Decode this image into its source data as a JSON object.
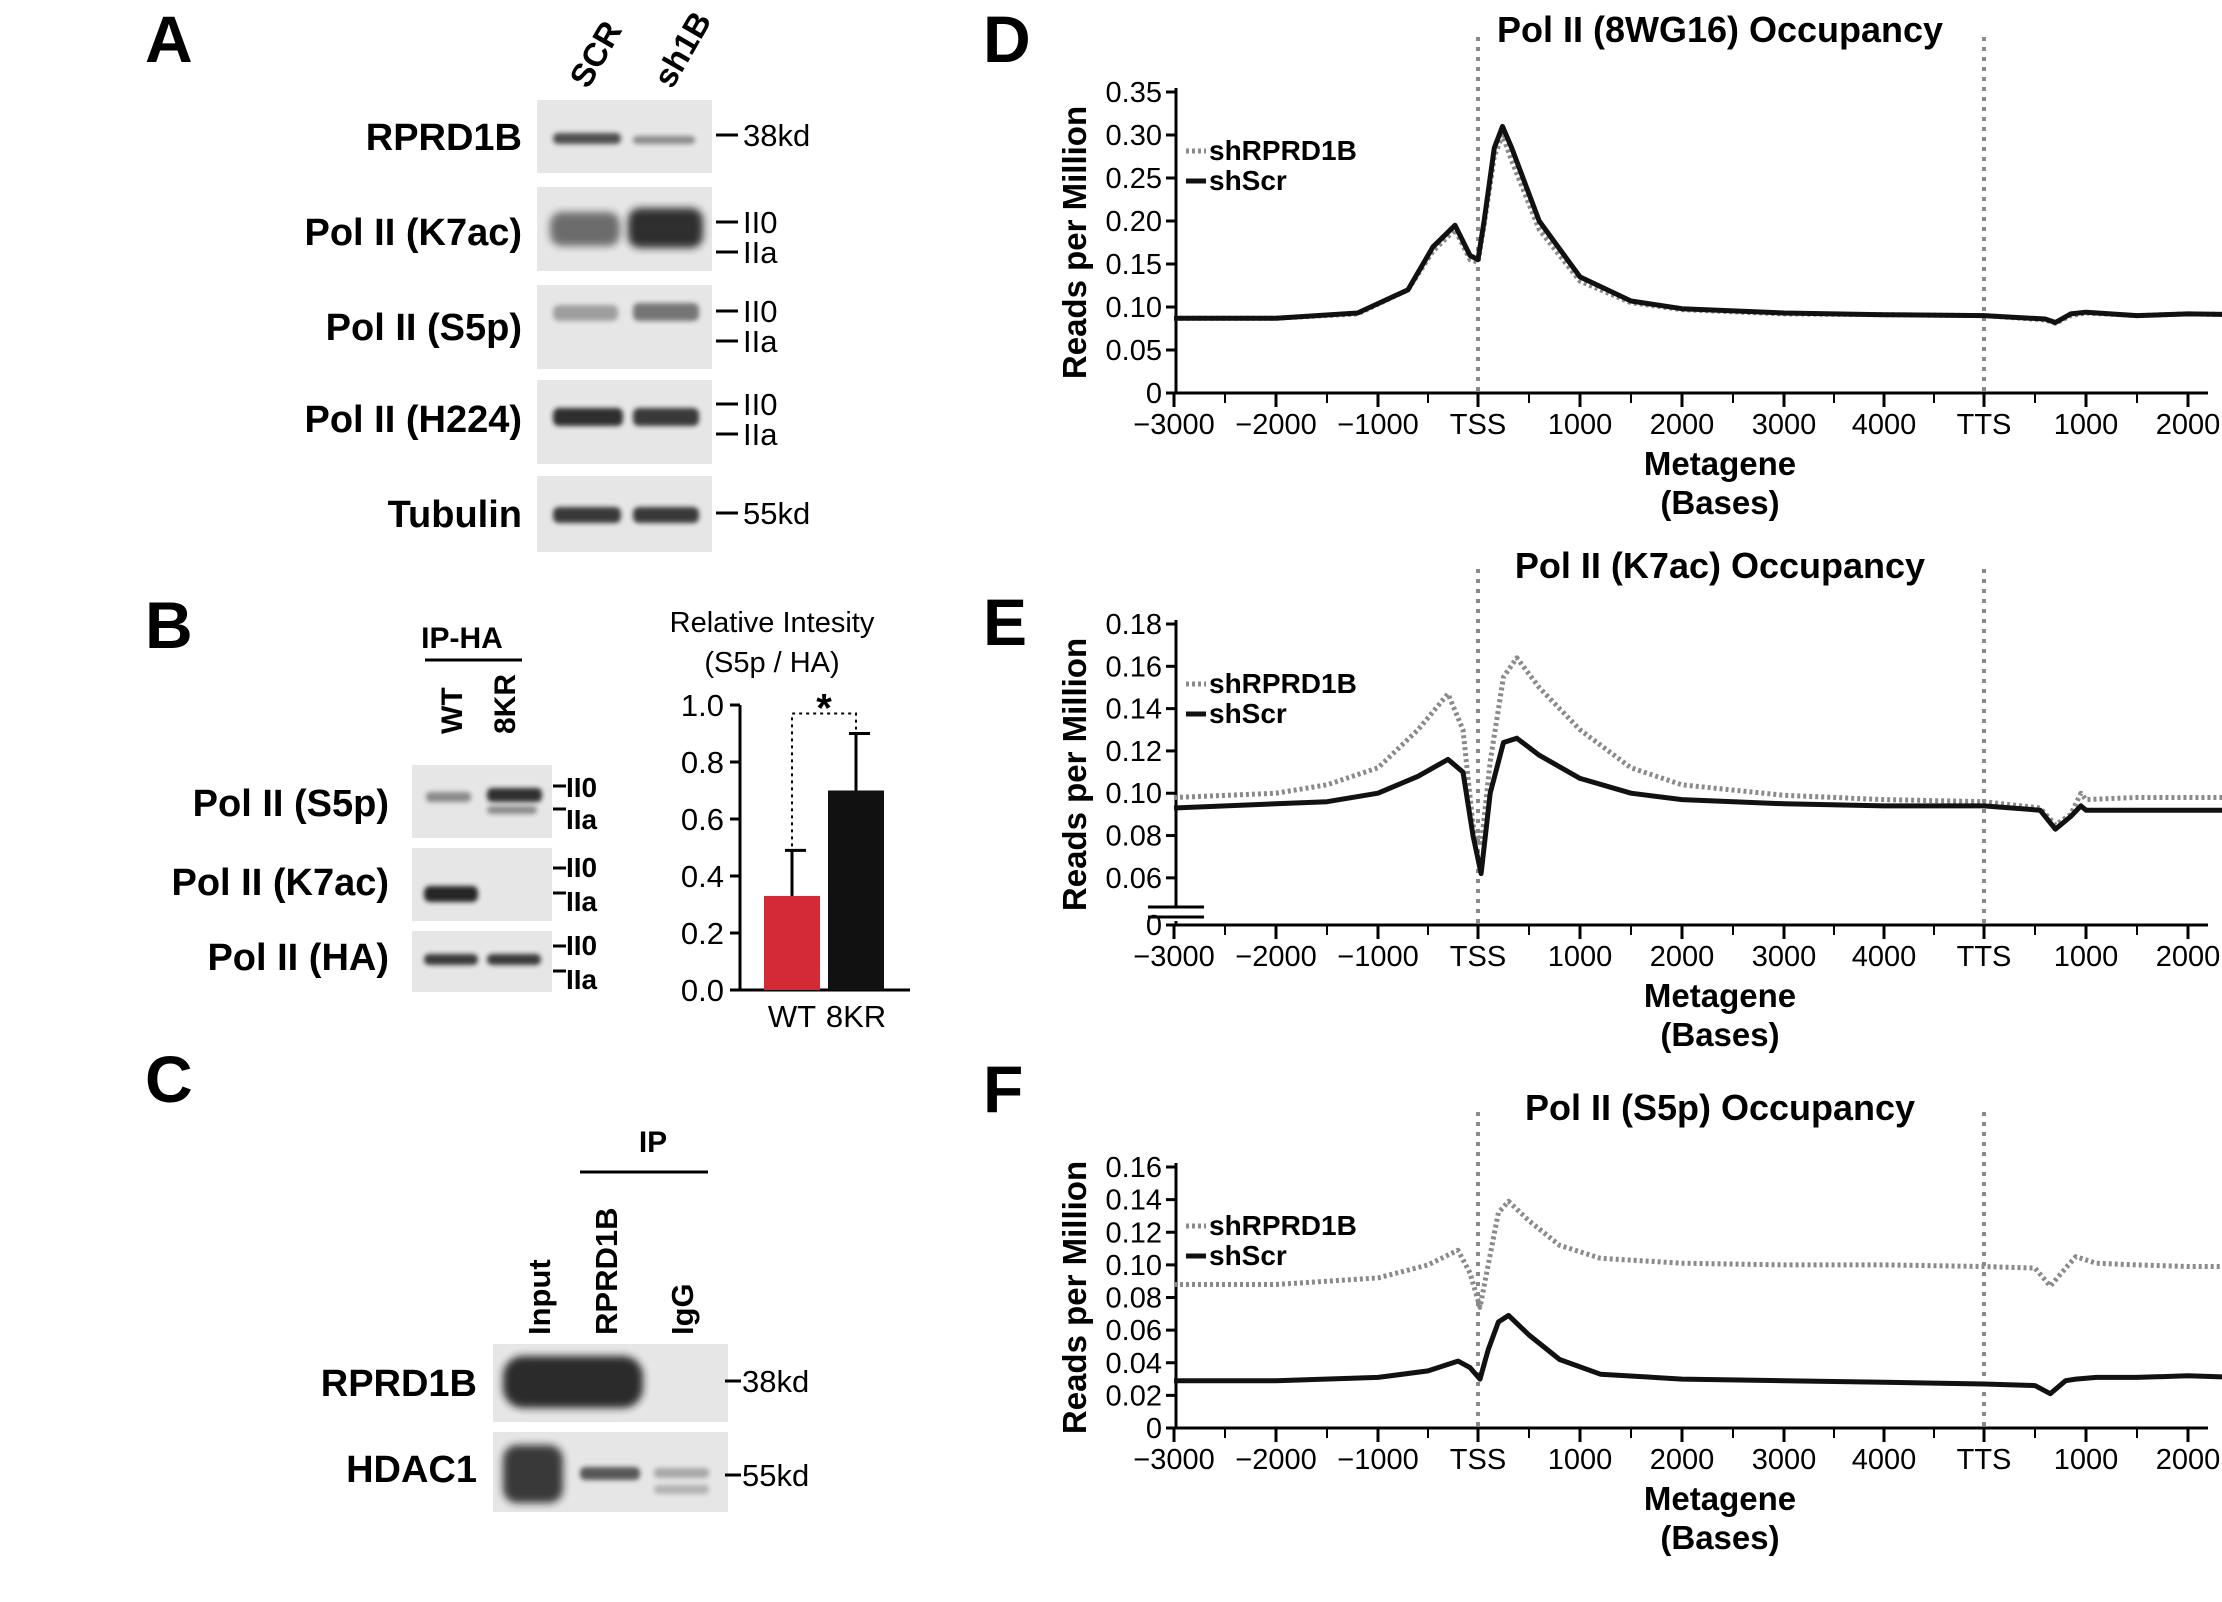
{
  "panels": {
    "A": {
      "letter": "A",
      "lanes": [
        "SCR",
        "sh1B"
      ],
      "rows": [
        {
          "label": "RPRD1B",
          "markers": [
            "38kd"
          ]
        },
        {
          "label": "Pol II (K7ac)",
          "markers": [
            "II0",
            "IIa"
          ]
        },
        {
          "label": "Pol II (S5p)",
          "markers": [
            "II0",
            "IIa"
          ]
        },
        {
          "label": "Pol II (H224)",
          "markers": [
            "II0",
            "IIa"
          ]
        },
        {
          "label": "Tubulin",
          "markers": [
            "55kd"
          ]
        }
      ]
    },
    "B": {
      "letter": "B",
      "ip_label": "IP-HA",
      "lanes": [
        "WT",
        "8KR"
      ],
      "rows": [
        {
          "label": "Pol II (S5p)",
          "markers": [
            "II0",
            "IIa"
          ]
        },
        {
          "label": "Pol II (K7ac)",
          "markers": [
            "II0",
            "IIa"
          ]
        },
        {
          "label": "Pol II (HA)",
          "markers": [
            "II0",
            "IIa"
          ]
        }
      ],
      "bar_title_line1": "Relative Intesity",
      "bar_title_line2": "(S5p / HA)",
      "significance": "*"
    },
    "C": {
      "letter": "C",
      "ip_label": "IP",
      "lanes": [
        "Input",
        "RPRD1B",
        "IgG"
      ],
      "rows": [
        {
          "label": "RPRD1B",
          "markers": [
            "38kd"
          ]
        },
        {
          "label": "HDAC1",
          "markers": [
            "55kd"
          ]
        }
      ]
    },
    "D": {
      "letter": "D"
    },
    "E": {
      "letter": "E"
    },
    "F": {
      "letter": "F"
    }
  },
  "colors": {
    "black": "#111111",
    "gray": "#8a8a8a",
    "red_bar": "#d42a36",
    "blot_background": "#e6e6e6"
  },
  "chart_data": [
    {
      "id": "B-bar",
      "type": "bar",
      "categories": [
        "WT",
        "8KR"
      ],
      "values": [
        0.33,
        0.7
      ],
      "errors": [
        0.16,
        0.2
      ],
      "bar_colors": [
        "#d42a36",
        "#111111"
      ],
      "ylim": [
        0,
        1.0
      ],
      "yticks": [
        "0.0",
        "0.2",
        "0.4",
        "0.6",
        "0.8",
        "1.0"
      ],
      "title": "Relative Intesity (S5p / HA)"
    },
    {
      "id": "D",
      "type": "line",
      "title": "Pol II (8WG16) Occupancy",
      "xlabel_line1": "Metagene",
      "xlabel_line2": "(Bases)",
      "ylabel": "Reads per Million",
      "xtick_labels": [
        "-3000",
        "-2000",
        "-1000",
        "TSS",
        "1000",
        "2000",
        "3000",
        "4000",
        "TTS",
        "1000",
        "2000"
      ],
      "ylim": [
        0,
        0.35
      ],
      "yticks": [
        "0",
        "0.05",
        "0.10",
        "0.15",
        "0.20",
        "0.25",
        "0.30",
        "0.35"
      ],
      "axis_break": false,
      "legend": [
        "shRPRD1B",
        "shScr"
      ],
      "series": [
        {
          "name": "shRPRD1B",
          "style": "dotted",
          "color": "#8a8a8a",
          "points": [
            [
              -3000,
              0.087
            ],
            [
              -2000,
              0.087
            ],
            [
              -1200,
              0.092
            ],
            [
              -700,
              0.12
            ],
            [
              -450,
              0.165
            ],
            [
              -230,
              0.19
            ],
            [
              -80,
              0.155
            ],
            [
              0,
              0.152
            ],
            [
              60,
              0.195
            ],
            [
              160,
              0.275
            ],
            [
              240,
              0.3
            ],
            [
              330,
              0.27
            ],
            [
              600,
              0.19
            ],
            [
              1000,
              0.13
            ],
            [
              1500,
              0.105
            ],
            [
              2000,
              0.097
            ],
            [
              3000,
              0.092
            ],
            [
              4000,
              0.091
            ],
            [
              5000,
              0.09
            ],
            [
              5600,
              0.085
            ],
            [
              5700,
              0.081
            ],
            [
              5850,
              0.09
            ],
            [
              6000,
              0.093
            ],
            [
              6500,
              0.09
            ],
            [
              7000,
              0.092
            ],
            [
              7500,
              0.091
            ],
            [
              8000,
              0.091
            ]
          ]
        },
        {
          "name": "shScr",
          "style": "solid",
          "color": "#111111",
          "points": [
            [
              -3000,
              0.087
            ],
            [
              -2000,
              0.087
            ],
            [
              -1200,
              0.093
            ],
            [
              -700,
              0.12
            ],
            [
              -450,
              0.17
            ],
            [
              -230,
              0.195
            ],
            [
              -80,
              0.16
            ],
            [
              0,
              0.155
            ],
            [
              60,
              0.2
            ],
            [
              160,
              0.285
            ],
            [
              240,
              0.31
            ],
            [
              330,
              0.285
            ],
            [
              600,
              0.2
            ],
            [
              1000,
              0.135
            ],
            [
              1500,
              0.107
            ],
            [
              2000,
              0.098
            ],
            [
              3000,
              0.093
            ],
            [
              4000,
              0.091
            ],
            [
              5000,
              0.09
            ],
            [
              5600,
              0.086
            ],
            [
              5700,
              0.082
            ],
            [
              5850,
              0.092
            ],
            [
              6000,
              0.094
            ],
            [
              6500,
              0.09
            ],
            [
              7000,
              0.092
            ],
            [
              7500,
              0.091
            ],
            [
              8000,
              0.091
            ]
          ]
        }
      ]
    },
    {
      "id": "E",
      "type": "line",
      "title": "Pol II (K7ac) Occupancy",
      "xlabel_line1": "Metagene",
      "xlabel_line2": "(Bases)",
      "ylabel": "Reads per Million",
      "xtick_labels": [
        "-3000",
        "-2000",
        "-1000",
        "TSS",
        "1000",
        "2000",
        "3000",
        "4000",
        "TTS",
        "1000",
        "2000"
      ],
      "ylim": [
        0.05,
        0.18
      ],
      "yticks": [
        "0.06",
        "0.08",
        "0.10",
        "0.12",
        "0.14",
        "0.16",
        "0.18"
      ],
      "axis_break": true,
      "zero_label": "0",
      "legend": [
        "shRPRD1B",
        "shScr"
      ],
      "series": [
        {
          "name": "shRPRD1B",
          "style": "dotted",
          "color": "#8a8a8a",
          "points": [
            [
              -3000,
              0.098
            ],
            [
              -2000,
              0.1
            ],
            [
              -1500,
              0.104
            ],
            [
              -1000,
              0.112
            ],
            [
              -600,
              0.13
            ],
            [
              -300,
              0.147
            ],
            [
              -150,
              0.13
            ],
            [
              -50,
              0.085
            ],
            [
              30,
              0.075
            ],
            [
              120,
              0.115
            ],
            [
              250,
              0.155
            ],
            [
              380,
              0.164
            ],
            [
              600,
              0.15
            ],
            [
              1000,
              0.13
            ],
            [
              1500,
              0.112
            ],
            [
              2000,
              0.104
            ],
            [
              3000,
              0.099
            ],
            [
              4000,
              0.097
            ],
            [
              5000,
              0.096
            ],
            [
              5550,
              0.093
            ],
            [
              5700,
              0.085
            ],
            [
              5850,
              0.09
            ],
            [
              5950,
              0.1
            ],
            [
              6000,
              0.097
            ],
            [
              6500,
              0.098
            ],
            [
              7000,
              0.098
            ],
            [
              7500,
              0.098
            ],
            [
              8000,
              0.098
            ]
          ]
        },
        {
          "name": "shScr",
          "style": "solid",
          "color": "#111111",
          "points": [
            [
              -3000,
              0.093
            ],
            [
              -2000,
              0.095
            ],
            [
              -1500,
              0.096
            ],
            [
              -1000,
              0.1
            ],
            [
              -600,
              0.108
            ],
            [
              -300,
              0.116
            ],
            [
              -150,
              0.11
            ],
            [
              -50,
              0.08
            ],
            [
              30,
              0.062
            ],
            [
              120,
              0.1
            ],
            [
              250,
              0.124
            ],
            [
              380,
              0.126
            ],
            [
              600,
              0.118
            ],
            [
              1000,
              0.107
            ],
            [
              1500,
              0.1
            ],
            [
              2000,
              0.097
            ],
            [
              3000,
              0.095
            ],
            [
              4000,
              0.094
            ],
            [
              5000,
              0.094
            ],
            [
              5550,
              0.092
            ],
            [
              5700,
              0.083
            ],
            [
              5850,
              0.089
            ],
            [
              5950,
              0.094
            ],
            [
              6000,
              0.092
            ],
            [
              6500,
              0.092
            ],
            [
              7000,
              0.092
            ],
            [
              7500,
              0.092
            ],
            [
              8000,
              0.091
            ]
          ]
        }
      ]
    },
    {
      "id": "F",
      "type": "line",
      "title": "Pol II (S5p) Occupancy",
      "xlabel_line1": "Metagene",
      "xlabel_line2": "(Bases)",
      "ylabel": "Reads per Million",
      "xtick_labels": [
        "-3000",
        "-2000",
        "-1000",
        "TSS",
        "1000",
        "2000",
        "3000",
        "4000",
        "TTS",
        "1000",
        "2000"
      ],
      "ylim": [
        0,
        0.16
      ],
      "yticks": [
        "0",
        "0.02",
        "0.04",
        "0.06",
        "0.08",
        "0.10",
        "0.12",
        "0.14",
        "0.16"
      ],
      "axis_break": false,
      "legend": [
        "shRPRD1B",
        "shScr"
      ],
      "series": [
        {
          "name": "shRPRD1B",
          "style": "dotted",
          "color": "#8a8a8a",
          "points": [
            [
              -3000,
              0.088
            ],
            [
              -2000,
              0.088
            ],
            [
              -1000,
              0.092
            ],
            [
              -500,
              0.1
            ],
            [
              -200,
              0.109
            ],
            [
              -80,
              0.095
            ],
            [
              20,
              0.074
            ],
            [
              100,
              0.1
            ],
            [
              200,
              0.132
            ],
            [
              300,
              0.139
            ],
            [
              500,
              0.127
            ],
            [
              800,
              0.112
            ],
            [
              1200,
              0.104
            ],
            [
              2000,
              0.101
            ],
            [
              3000,
              0.1
            ],
            [
              4000,
              0.1
            ],
            [
              5000,
              0.099
            ],
            [
              5500,
              0.098
            ],
            [
              5650,
              0.087
            ],
            [
              5800,
              0.098
            ],
            [
              5900,
              0.105
            ],
            [
              6100,
              0.101
            ],
            [
              6500,
              0.1
            ],
            [
              7000,
              0.099
            ],
            [
              7500,
              0.099
            ],
            [
              8000,
              0.098
            ]
          ]
        },
        {
          "name": "shScr",
          "style": "solid",
          "color": "#111111",
          "points": [
            [
              -3000,
              0.029
            ],
            [
              -2000,
              0.029
            ],
            [
              -1000,
              0.031
            ],
            [
              -500,
              0.035
            ],
            [
              -200,
              0.041
            ],
            [
              -80,
              0.037
            ],
            [
              20,
              0.03
            ],
            [
              100,
              0.048
            ],
            [
              200,
              0.065
            ],
            [
              300,
              0.069
            ],
            [
              500,
              0.057
            ],
            [
              800,
              0.042
            ],
            [
              1200,
              0.033
            ],
            [
              2000,
              0.03
            ],
            [
              3000,
              0.029
            ],
            [
              4000,
              0.028
            ],
            [
              5000,
              0.027
            ],
            [
              5500,
              0.026
            ],
            [
              5650,
              0.021
            ],
            [
              5800,
              0.029
            ],
            [
              5900,
              0.03
            ],
            [
              6100,
              0.031
            ],
            [
              6500,
              0.031
            ],
            [
              7000,
              0.032
            ],
            [
              7500,
              0.031
            ],
            [
              8000,
              0.03
            ]
          ]
        }
      ]
    }
  ]
}
